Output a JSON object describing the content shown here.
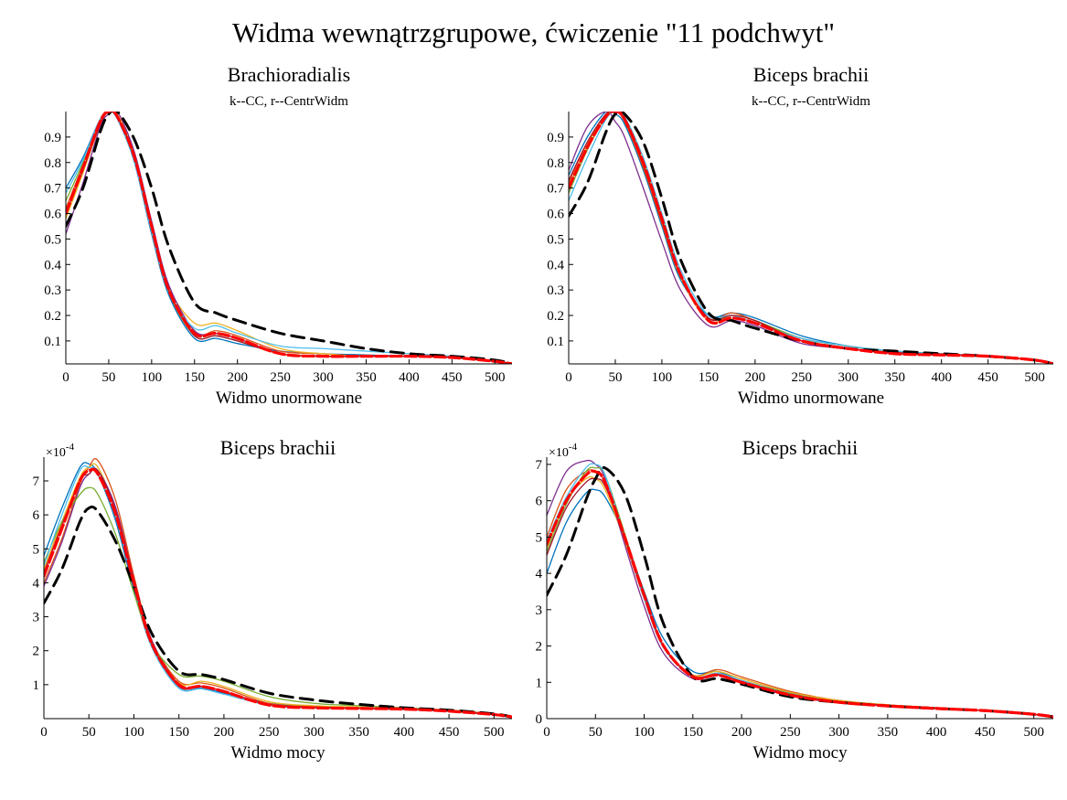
{
  "suptitle": "Widma wewnątrzgrupowe, ćwiczenie \"11 podchwyt\"",
  "colors": {
    "cc": "#000000",
    "centr": "#ff0000",
    "others": [
      "#0072BD",
      "#D95319",
      "#EDB120",
      "#7E2F8E",
      "#77AC30",
      "#4DBEEE",
      "#A2142F",
      "#0072BD",
      "#D95319",
      "#EDB120"
    ]
  },
  "chart_data": [
    {
      "type": "line",
      "title": "Brachioradialis",
      "subtitle": "k--CC, r--CentrWidm",
      "xlabel": "Widmo unormowane",
      "ylabel": "",
      "exponent": "",
      "xlim": [
        0,
        520
      ],
      "ylim": [
        0.01,
        1.0
      ],
      "xticks": [
        "0",
        "50",
        "100",
        "150",
        "200",
        "250",
        "300",
        "350",
        "400",
        "450",
        "500"
      ],
      "yticks": [
        "0.1",
        "0.2",
        "0.3",
        "0.4",
        "0.5",
        "0.6",
        "0.7",
        "0.8",
        "0.9"
      ],
      "x": [
        0,
        20,
        40,
        50,
        60,
        80,
        100,
        120,
        150,
        175,
        200,
        250,
        300,
        350,
        400,
        450,
        500,
        520
      ],
      "series": [
        {
          "role": "centr",
          "values": [
            0.6,
            0.78,
            0.96,
            1.0,
            0.98,
            0.82,
            0.55,
            0.3,
            0.13,
            0.13,
            0.11,
            0.05,
            0.04,
            0.04,
            0.04,
            0.035,
            0.02,
            0.01
          ]
        },
        {
          "role": "cc",
          "values": [
            0.55,
            0.7,
            0.92,
            0.99,
            1.0,
            0.89,
            0.7,
            0.47,
            0.25,
            0.21,
            0.18,
            0.13,
            0.1,
            0.07,
            0.05,
            0.04,
            0.025,
            0.01
          ]
        },
        {
          "role": "other",
          "values": [
            0.7,
            0.82,
            0.97,
            1.0,
            0.98,
            0.8,
            0.52,
            0.28,
            0.11,
            0.11,
            0.09,
            0.06,
            0.05,
            0.045,
            0.04,
            0.035,
            0.02,
            0.01
          ]
        },
        {
          "role": "other",
          "values": [
            0.62,
            0.79,
            0.96,
            1.0,
            0.98,
            0.82,
            0.54,
            0.3,
            0.13,
            0.14,
            0.12,
            0.06,
            0.05,
            0.04,
            0.04,
            0.035,
            0.02,
            0.01
          ]
        },
        {
          "role": "other",
          "values": [
            0.58,
            0.76,
            0.95,
            1.0,
            0.99,
            0.83,
            0.56,
            0.31,
            0.17,
            0.17,
            0.14,
            0.07,
            0.05,
            0.04,
            0.04,
            0.035,
            0.02,
            0.01
          ]
        },
        {
          "role": "other",
          "values": [
            0.52,
            0.72,
            0.94,
            0.99,
            1.0,
            0.84,
            0.57,
            0.32,
            0.14,
            0.13,
            0.11,
            0.05,
            0.04,
            0.04,
            0.04,
            0.035,
            0.02,
            0.01
          ]
        },
        {
          "role": "other",
          "values": [
            0.65,
            0.8,
            0.97,
            1.0,
            0.98,
            0.81,
            0.53,
            0.29,
            0.12,
            0.12,
            0.1,
            0.05,
            0.04,
            0.04,
            0.04,
            0.035,
            0.02,
            0.01
          ]
        },
        {
          "role": "other",
          "values": [
            0.68,
            0.81,
            0.97,
            1.0,
            0.97,
            0.8,
            0.53,
            0.29,
            0.15,
            0.16,
            0.13,
            0.08,
            0.07,
            0.06,
            0.05,
            0.04,
            0.02,
            0.01
          ]
        },
        {
          "role": "other",
          "values": [
            0.6,
            0.77,
            0.95,
            1.0,
            0.98,
            0.82,
            0.55,
            0.3,
            0.12,
            0.12,
            0.1,
            0.05,
            0.04,
            0.04,
            0.04,
            0.035,
            0.02,
            0.01
          ]
        }
      ]
    },
    {
      "type": "line",
      "title": "Biceps brachii",
      "subtitle": "k--CC, r--CentrWidm",
      "xlabel": "Widmo unormowane",
      "ylabel": "",
      "exponent": "",
      "xlim": [
        0,
        520
      ],
      "ylim": [
        0.01,
        1.0
      ],
      "xticks": [
        "0",
        "50",
        "100",
        "150",
        "200",
        "250",
        "300",
        "350",
        "400",
        "450",
        "500"
      ],
      "yticks": [
        "0.1",
        "0.2",
        "0.3",
        "0.4",
        "0.5",
        "0.6",
        "0.7",
        "0.8",
        "0.9"
      ],
      "x": [
        0,
        20,
        40,
        50,
        60,
        80,
        100,
        120,
        150,
        175,
        200,
        250,
        300,
        350,
        400,
        450,
        500,
        520
      ],
      "series": [
        {
          "role": "centr",
          "values": [
            0.7,
            0.86,
            0.98,
            1.0,
            0.97,
            0.8,
            0.58,
            0.36,
            0.18,
            0.19,
            0.17,
            0.1,
            0.07,
            0.05,
            0.045,
            0.04,
            0.025,
            0.01
          ]
        },
        {
          "role": "cc",
          "values": [
            0.59,
            0.72,
            0.92,
            0.99,
            0.99,
            0.88,
            0.66,
            0.42,
            0.21,
            0.18,
            0.15,
            0.1,
            0.07,
            0.06,
            0.05,
            0.04,
            0.025,
            0.01
          ]
        },
        {
          "role": "other",
          "values": [
            0.75,
            0.9,
            1.0,
            0.99,
            0.95,
            0.77,
            0.55,
            0.34,
            0.2,
            0.21,
            0.19,
            0.12,
            0.08,
            0.06,
            0.05,
            0.04,
            0.025,
            0.01
          ]
        },
        {
          "role": "other",
          "values": [
            0.72,
            0.88,
            0.99,
            1.0,
            0.96,
            0.78,
            0.56,
            0.35,
            0.19,
            0.21,
            0.18,
            0.11,
            0.08,
            0.06,
            0.05,
            0.04,
            0.025,
            0.01
          ]
        },
        {
          "role": "other",
          "values": [
            0.7,
            0.87,
            0.99,
            1.0,
            0.97,
            0.79,
            0.57,
            0.35,
            0.18,
            0.2,
            0.18,
            0.1,
            0.07,
            0.055,
            0.045,
            0.04,
            0.025,
            0.01
          ]
        },
        {
          "role": "other",
          "values": [
            0.77,
            0.94,
            1.0,
            0.96,
            0.9,
            0.7,
            0.49,
            0.3,
            0.16,
            0.18,
            0.16,
            0.09,
            0.07,
            0.05,
            0.045,
            0.04,
            0.025,
            0.01
          ]
        },
        {
          "role": "other",
          "values": [
            0.68,
            0.85,
            0.98,
            1.0,
            0.98,
            0.8,
            0.58,
            0.36,
            0.19,
            0.2,
            0.18,
            0.11,
            0.08,
            0.06,
            0.05,
            0.04,
            0.025,
            0.01
          ]
        },
        {
          "role": "other",
          "values": [
            0.65,
            0.82,
            0.97,
            1.0,
            0.98,
            0.82,
            0.6,
            0.38,
            0.2,
            0.2,
            0.17,
            0.11,
            0.08,
            0.06,
            0.05,
            0.04,
            0.025,
            0.01
          ]
        },
        {
          "role": "other",
          "values": [
            0.73,
            0.88,
            0.99,
            1.0,
            0.97,
            0.79,
            0.57,
            0.36,
            0.19,
            0.2,
            0.18,
            0.1,
            0.07,
            0.055,
            0.045,
            0.04,
            0.025,
            0.01
          ]
        }
      ]
    },
    {
      "type": "line",
      "title": "Biceps brachii",
      "subtitle": "",
      "xlabel": "Widmo mocy",
      "ylabel": "",
      "exponent": "10",
      "exponent_power": "-4",
      "xlim": [
        0,
        520
      ],
      "ylim": [
        0,
        7.7
      ],
      "xticks": [
        "0",
        "50",
        "100",
        "150",
        "200",
        "250",
        "300",
        "350",
        "400",
        "450",
        "500"
      ],
      "yticks": [
        "1",
        "2",
        "3",
        "4",
        "5",
        "6",
        "7"
      ],
      "x": [
        0,
        20,
        40,
        50,
        60,
        80,
        100,
        120,
        150,
        175,
        200,
        250,
        300,
        350,
        400,
        450,
        500,
        520
      ],
      "series": [
        {
          "role": "centr",
          "values": [
            4.2,
            5.6,
            7.0,
            7.3,
            7.2,
            6.0,
            4.0,
            2.2,
            1.0,
            0.95,
            0.8,
            0.4,
            0.32,
            0.3,
            0.28,
            0.22,
            0.12,
            0.05
          ]
        },
        {
          "role": "cc",
          "values": [
            3.4,
            4.4,
            5.8,
            6.2,
            6.1,
            5.2,
            3.9,
            2.5,
            1.4,
            1.3,
            1.15,
            0.75,
            0.55,
            0.42,
            0.32,
            0.25,
            0.14,
            0.05
          ]
        },
        {
          "role": "other",
          "values": [
            4.8,
            6.2,
            7.4,
            7.5,
            7.2,
            5.8,
            3.8,
            2.1,
            0.9,
            0.9,
            0.75,
            0.45,
            0.36,
            0.32,
            0.28,
            0.22,
            0.12,
            0.05
          ]
        },
        {
          "role": "other",
          "values": [
            4.0,
            5.3,
            6.9,
            7.4,
            7.6,
            6.4,
            4.2,
            2.3,
            1.1,
            1.05,
            0.9,
            0.45,
            0.35,
            0.32,
            0.28,
            0.22,
            0.12,
            0.05
          ]
        },
        {
          "role": "other",
          "values": [
            4.4,
            5.8,
            7.1,
            7.4,
            7.4,
            6.1,
            4.0,
            2.2,
            1.05,
            1.1,
            0.95,
            0.5,
            0.38,
            0.34,
            0.29,
            0.22,
            0.12,
            0.05
          ]
        },
        {
          "role": "other",
          "values": [
            3.9,
            5.2,
            6.8,
            7.2,
            7.3,
            6.2,
            4.1,
            2.3,
            1.0,
            0.95,
            0.8,
            0.4,
            0.32,
            0.3,
            0.27,
            0.22,
            0.12,
            0.05
          ]
        },
        {
          "role": "other",
          "values": [
            4.6,
            5.8,
            6.6,
            6.8,
            6.6,
            5.4,
            3.7,
            2.2,
            1.3,
            1.25,
            1.1,
            0.65,
            0.45,
            0.38,
            0.32,
            0.25,
            0.14,
            0.05
          ]
        },
        {
          "role": "other",
          "values": [
            4.5,
            6.0,
            7.3,
            7.4,
            7.2,
            5.9,
            3.9,
            2.1,
            0.9,
            0.88,
            0.72,
            0.4,
            0.33,
            0.3,
            0.27,
            0.22,
            0.12,
            0.05
          ]
        },
        {
          "role": "other",
          "values": [
            4.3,
            5.7,
            7.0,
            7.2,
            7.3,
            6.1,
            4.0,
            2.2,
            0.95,
            0.95,
            0.8,
            0.42,
            0.34,
            0.31,
            0.28,
            0.22,
            0.12,
            0.05
          ]
        }
      ]
    },
    {
      "type": "line",
      "title": "Biceps brachii",
      "subtitle": "",
      "xlabel": "Widmo mocy",
      "ylabel": "",
      "exponent": "10",
      "exponent_power": "-4",
      "xlim": [
        0,
        520
      ],
      "ylim": [
        0,
        7.2
      ],
      "xticks": [
        "0",
        "50",
        "100",
        "150",
        "200",
        "250",
        "300",
        "350",
        "400",
        "450",
        "500"
      ],
      "yticks": [
        "0",
        "1",
        "2",
        "3",
        "4",
        "5",
        "6",
        "7"
      ],
      "x": [
        0,
        20,
        40,
        50,
        60,
        80,
        100,
        120,
        150,
        175,
        200,
        250,
        300,
        350,
        400,
        450,
        500,
        520
      ],
      "series": [
        {
          "role": "centr",
          "values": [
            4.8,
            6.0,
            6.7,
            6.8,
            6.5,
            5.0,
            3.4,
            2.0,
            1.15,
            1.2,
            1.0,
            0.65,
            0.45,
            0.35,
            0.28,
            0.22,
            0.12,
            0.05
          ]
        },
        {
          "role": "cc",
          "values": [
            3.4,
            4.5,
            6.0,
            6.6,
            6.9,
            6.2,
            4.5,
            2.6,
            1.15,
            1.1,
            0.95,
            0.6,
            0.45,
            0.35,
            0.28,
            0.22,
            0.12,
            0.05
          ]
        },
        {
          "role": "other",
          "values": [
            4.0,
            5.4,
            6.2,
            6.3,
            6.1,
            5.0,
            3.5,
            2.2,
            1.3,
            1.3,
            1.05,
            0.7,
            0.5,
            0.38,
            0.3,
            0.22,
            0.12,
            0.05
          ]
        },
        {
          "role": "other",
          "values": [
            5.0,
            6.3,
            6.8,
            6.8,
            6.5,
            4.9,
            3.3,
            1.95,
            1.2,
            1.35,
            1.15,
            0.75,
            0.5,
            0.38,
            0.3,
            0.22,
            0.12,
            0.05
          ]
        },
        {
          "role": "other",
          "values": [
            4.7,
            6.0,
            6.6,
            6.6,
            6.3,
            4.9,
            3.4,
            2.0,
            1.2,
            1.3,
            1.1,
            0.72,
            0.5,
            0.38,
            0.3,
            0.22,
            0.12,
            0.05
          ]
        },
        {
          "role": "other",
          "values": [
            5.6,
            6.8,
            7.1,
            7.0,
            6.6,
            4.8,
            3.1,
            1.8,
            1.1,
            1.2,
            1.0,
            0.62,
            0.44,
            0.35,
            0.28,
            0.22,
            0.12,
            0.05
          ]
        },
        {
          "role": "other",
          "values": [
            4.6,
            5.9,
            6.8,
            6.9,
            6.7,
            5.1,
            3.4,
            2.0,
            1.15,
            1.25,
            1.05,
            0.68,
            0.47,
            0.36,
            0.29,
            0.22,
            0.12,
            0.05
          ]
        },
        {
          "role": "other",
          "values": [
            4.9,
            6.1,
            6.9,
            7.0,
            6.7,
            5.0,
            3.3,
            1.95,
            1.15,
            1.25,
            1.05,
            0.66,
            0.46,
            0.36,
            0.29,
            0.22,
            0.12,
            0.05
          ]
        },
        {
          "role": "other",
          "values": [
            4.5,
            5.8,
            6.5,
            6.6,
            6.4,
            5.0,
            3.4,
            2.0,
            1.18,
            1.22,
            1.02,
            0.66,
            0.46,
            0.36,
            0.29,
            0.22,
            0.12,
            0.05
          ]
        }
      ]
    }
  ]
}
